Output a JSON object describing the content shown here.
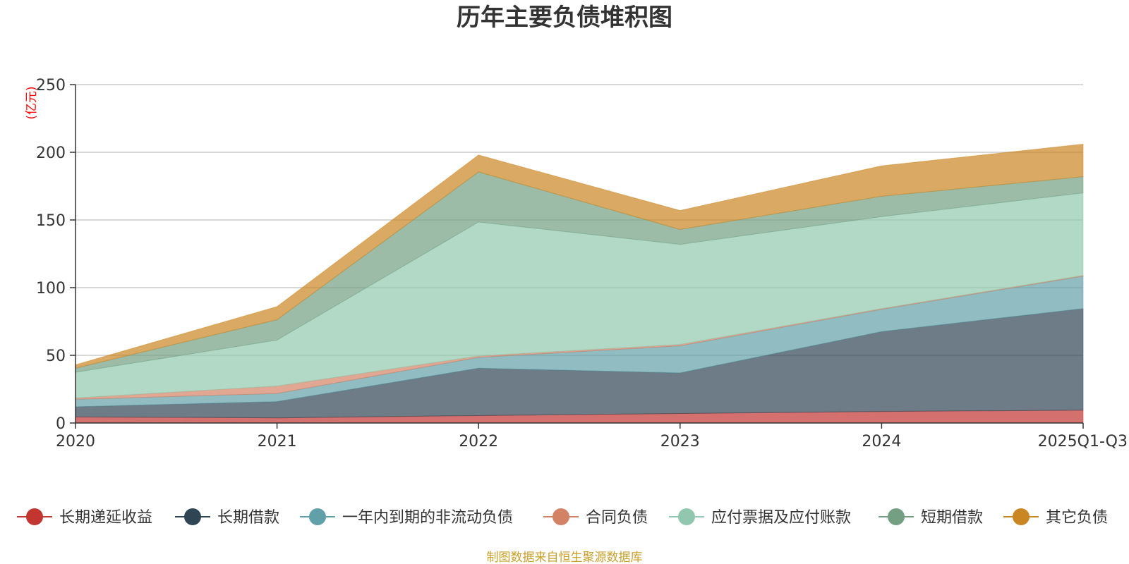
{
  "chart_data": {
    "type": "area",
    "stacked": true,
    "title": "历年主要负债堆积图",
    "unit": "(亿元)",
    "source": "制图数据来自恒生聚源数据库",
    "categories": [
      "2020",
      "2021",
      "2022",
      "2023",
      "2024",
      "2025Q1-Q3"
    ],
    "ylim": [
      0,
      250
    ],
    "yticks": [
      "0",
      "50",
      "100",
      "150",
      "200",
      "250"
    ],
    "grid": true,
    "legend_position": "bottom",
    "series": [
      {
        "name": "长期递延收益",
        "color": "#c23531",
        "values": [
          4.5,
          3.8,
          5.5,
          7.0,
          8.5,
          9.5
        ]
      },
      {
        "name": "长期借款",
        "color": "#2f4554",
        "values": [
          7.5,
          12.0,
          35.0,
          30.0,
          59.0,
          75.0
        ]
      },
      {
        "name": "一年内到期的非流动负债",
        "color": "#61a0a8",
        "values": [
          5.5,
          6.0,
          8.0,
          20.0,
          16.5,
          24.0
        ]
      },
      {
        "name": "合同负债",
        "color": "#d48265",
        "values": [
          1.0,
          5.5,
          1.0,
          1.0,
          0.5,
          0.5
        ]
      },
      {
        "name": "应付票据及应付账款",
        "color": "#91c7ae",
        "values": [
          19.0,
          34.0,
          99.0,
          74.0,
          68.0,
          61.0
        ]
      },
      {
        "name": "短期借款",
        "color": "#749f83",
        "values": [
          3.0,
          15.0,
          37.0,
          11.0,
          15.0,
          12.0
        ]
      },
      {
        "name": "其它负债",
        "color": "#ca8622",
        "values": [
          2.5,
          9.7,
          12.5,
          14.0,
          22.5,
          24.0
        ]
      }
    ]
  }
}
